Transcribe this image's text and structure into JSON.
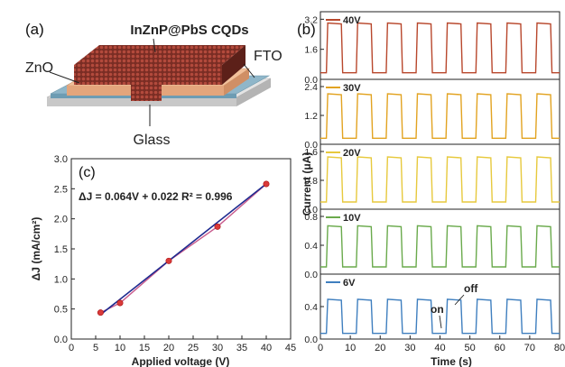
{
  "panel_a": {
    "label": "(a)",
    "title": "InZnP@PbS CQDs",
    "labels": {
      "zno": "ZnO",
      "fto": "FTO",
      "glass": "Glass"
    }
  },
  "panel_b": {
    "label": "(b)"
  },
  "panel_c": {
    "label": "(c)"
  },
  "colors": {
    "v40": "#b8472c",
    "v30": "#e2a321",
    "v20": "#e7c93d",
    "v10": "#6aaa4c",
    "v6": "#3f7fbf",
    "fit_line": "#1e2a8f",
    "data_line": "#c85a8c",
    "marker": "#d93a3a"
  },
  "chart_data": [
    {
      "type": "line",
      "panel": "(c)",
      "annotation": "ΔJ = 0.064V + 0.022  R² = 0.996",
      "xlabel": "Applied voltage (V)",
      "ylabel": "ΔJ (mA/cm²)",
      "xlim": [
        0,
        45
      ],
      "ylim": [
        0.0,
        3.0
      ],
      "xticks": [
        "0",
        "5",
        "10",
        "15",
        "20",
        "25",
        "30",
        "35",
        "40",
        "45"
      ],
      "yticks": [
        "0.0",
        "0.5",
        "1.0",
        "1.5",
        "2.0",
        "2.5",
        "3.0"
      ],
      "series": [
        {
          "x": [
            6,
            10,
            20,
            30,
            40
          ],
          "y": [
            0.44,
            0.6,
            1.3,
            1.87,
            2.58
          ]
        }
      ],
      "fit": {
        "slope": 0.064,
        "intercept": 0.022,
        "x_range": [
          6,
          40
        ]
      }
    },
    {
      "type": "line",
      "panel": "(b)",
      "xlabel": "Time (s)",
      "ylabel": "Current (μA)",
      "xlim": [
        0,
        80
      ],
      "xticks": [
        "0",
        "10",
        "20",
        "30",
        "40",
        "50",
        "60",
        "70",
        "80"
      ],
      "period_s": 10,
      "on_duration_s": 5,
      "first_rise_s": 2,
      "annotations": [
        "on",
        "off"
      ],
      "series": [
        {
          "name": "40V",
          "color_key": "v40",
          "ylim": [
            0,
            3.6
          ],
          "yticks": [
            "0.0",
            "1.6",
            "3.2"
          ],
          "on": 3.0,
          "off": 0.35
        },
        {
          "name": "30V",
          "color_key": "v30",
          "ylim": [
            0,
            2.7
          ],
          "yticks": [
            "0.0",
            "1.2",
            "2.4"
          ],
          "on": 2.1,
          "off": 0.25
        },
        {
          "name": "20V",
          "color_key": "v20",
          "ylim": [
            0,
            1.8
          ],
          "yticks": [
            "0.0",
            "0.8",
            "1.6"
          ],
          "on": 1.45,
          "off": 0.2
        },
        {
          "name": "10V",
          "color_key": "v10",
          "ylim": [
            0,
            0.9
          ],
          "yticks": [
            "0.0",
            "0.4",
            "0.8"
          ],
          "on": 0.67,
          "off": 0.1
        },
        {
          "name": "6V",
          "color_key": "v6",
          "ylim": [
            0,
            0.8
          ],
          "yticks": [
            "0.0",
            "0.4"
          ],
          "on": 0.49,
          "off": 0.07
        }
      ]
    }
  ]
}
